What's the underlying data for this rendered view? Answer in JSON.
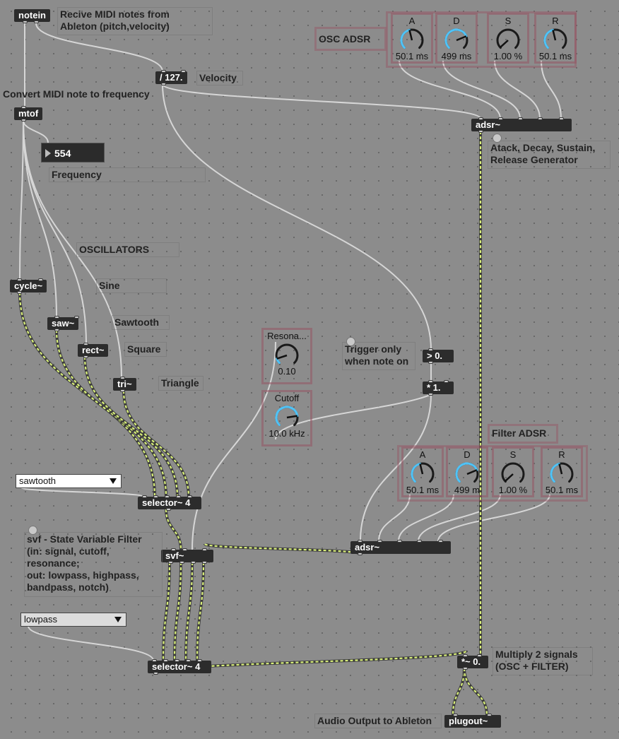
{
  "objects": {
    "notein": "notein",
    "div127": "/ 127.",
    "mtof": "mtof",
    "adsr_osc": "adsr~",
    "cycle": "cycle~",
    "saw": "saw~",
    "rect": "rect~",
    "tri": "tri~",
    "gt0": "> 0.",
    "mul1": "* 1.",
    "selector1": "selector~ 4",
    "svf": "svf~",
    "adsr_filter": "adsr~",
    "selector2": "selector~ 4",
    "mulsig": "*~ 0.",
    "plugout": "plugout~"
  },
  "comments": {
    "notein": "Recive MIDI notes from\nAbleton (pitch,velocity)",
    "velocity": "Velocity",
    "convert": "Convert MIDI note to frequency",
    "frequency": "Frequency",
    "osc_adsr": "OSC ADSR",
    "adsr_gen": "Atack, Decay, Sustain,\nRelease Generator",
    "oscillators": "OSCILLATORS",
    "sine": "Sine",
    "sawtooth": "Sawtooth",
    "square": "Square",
    "triangle": "Triangle",
    "trigger": "Trigger only\nwhen note on",
    "filter_adsr": "Filter ADSR",
    "svf": "svf - State Variable Filter\n(in: signal, cutoff,\nresonance;\nout: lowpass, highpass,\nbandpass, notch)",
    "multiply": "Multiply 2 signals\n(OSC + FILTER)",
    "audio_out": "Audio Output to Ableton"
  },
  "frequency_value": "554",
  "menus": {
    "waveform": "sawtooth",
    "filter_type": "lowpass"
  },
  "dials": {
    "osc_a": {
      "label": "A",
      "value": "50.1 ms",
      "level": 0.45
    },
    "osc_d": {
      "label": "D",
      "value": "499 ms",
      "level": 0.75
    },
    "osc_s": {
      "label": "S",
      "value": "1.00 %",
      "level": 0.01
    },
    "osc_r": {
      "label": "R",
      "value": "50.1 ms",
      "level": 0.45
    },
    "reso": {
      "label": "Resona...",
      "value": "0.10",
      "level": 0.1
    },
    "cutoff": {
      "label": "Cutoff",
      "value": "10.0 kHz",
      "level": 0.8
    },
    "flt_a": {
      "label": "A",
      "value": "50.1 ms",
      "level": 0.45
    },
    "flt_d": {
      "label": "D",
      "value": "499 m",
      "level": 0.75
    },
    "flt_s": {
      "label": "S",
      "value": "1.00 %",
      "level": 0.01
    },
    "flt_r": {
      "label": "R",
      "value": "50.1 ms",
      "level": 0.45
    }
  },
  "colors": {
    "background": "#8c8c8c",
    "object": "#2c2c2c",
    "signal_cable": "#d9f07a",
    "control_cable": "#d6d6d6",
    "dial_accent": "#4fc3f7",
    "group_border": "#965564"
  }
}
